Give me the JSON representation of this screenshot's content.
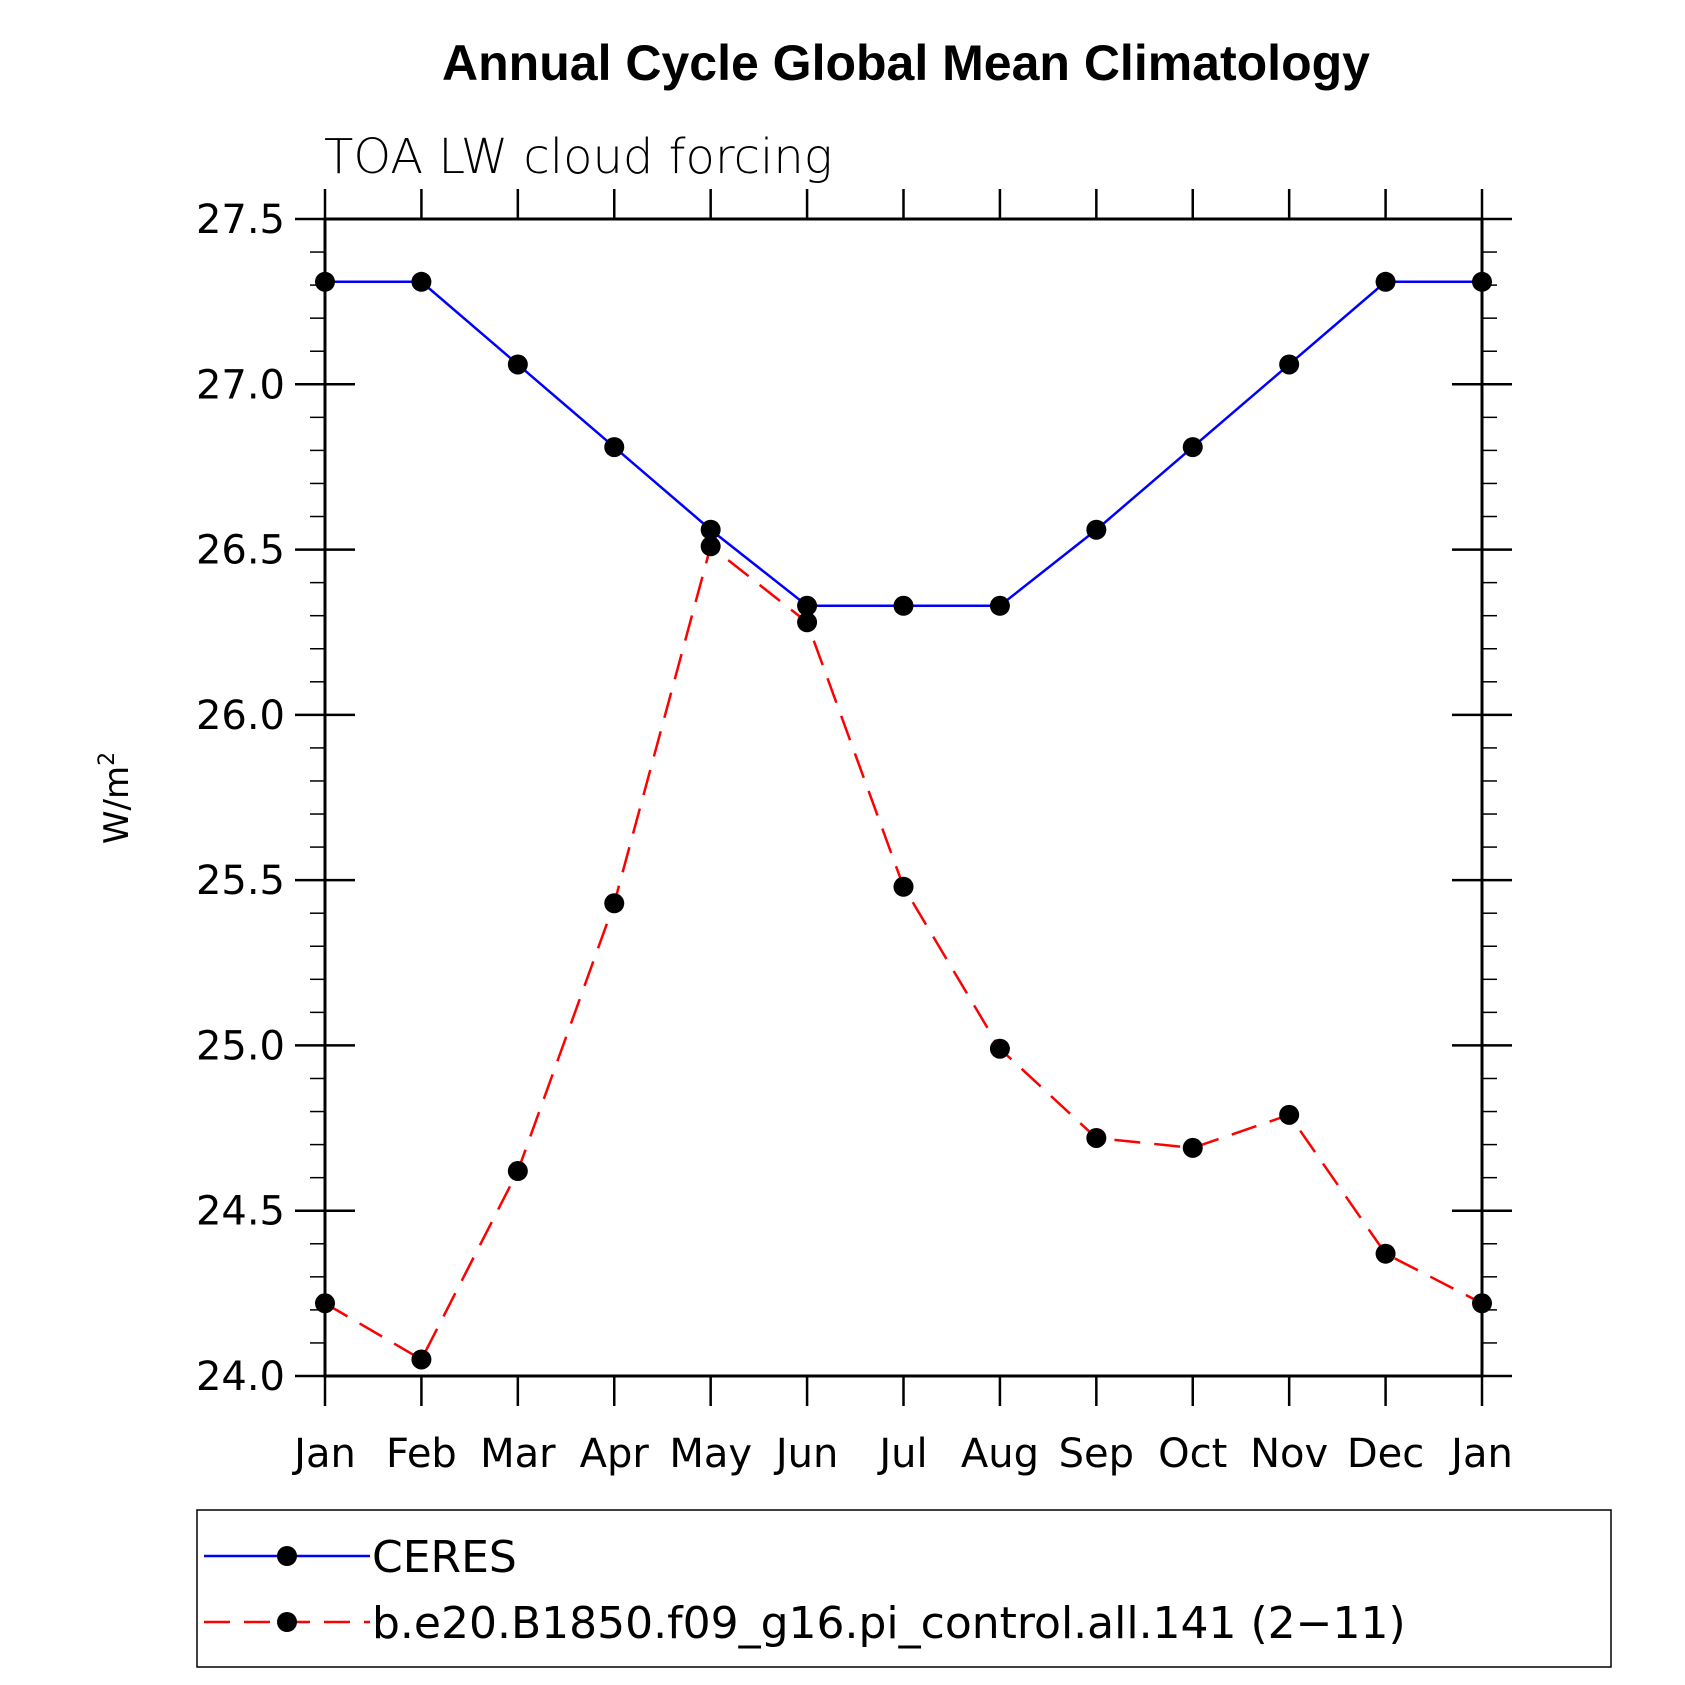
{
  "chart_data": {
    "type": "line",
    "title": "Annual Cycle Global Mean Climatology",
    "subtitle": "TOA LW cloud forcing",
    "ylabel": "W/m",
    "ylabel_superscript": "2",
    "xlabel": "",
    "categories": [
      "Jan",
      "Feb",
      "Mar",
      "Apr",
      "May",
      "Jun",
      "Jul",
      "Aug",
      "Sep",
      "Oct",
      "Nov",
      "Dec",
      "Jan"
    ],
    "ylim": [
      24.0,
      27.5
    ],
    "yticks": [
      "24.0",
      "24.5",
      "25.0",
      "25.5",
      "26.0",
      "26.5",
      "27.0",
      "27.5"
    ],
    "series": [
      {
        "name": "CERES",
        "color": "#0000ff",
        "dash": "solid",
        "values": [
          27.31,
          27.31,
          27.06,
          26.81,
          26.56,
          26.33,
          26.33,
          26.33,
          26.56,
          26.81,
          27.06,
          27.31,
          27.31
        ]
      },
      {
        "name": "b.e20.B1850.f09_g16.pi_control.all.141 (2−11)",
        "color": "#ff0000",
        "dash": "dashed",
        "values": [
          24.22,
          24.05,
          24.62,
          25.43,
          26.51,
          26.28,
          25.48,
          24.99,
          24.72,
          24.69,
          24.79,
          24.37,
          24.22
        ]
      }
    ],
    "marker_color": "#000000",
    "legend_position": "bottom"
  }
}
